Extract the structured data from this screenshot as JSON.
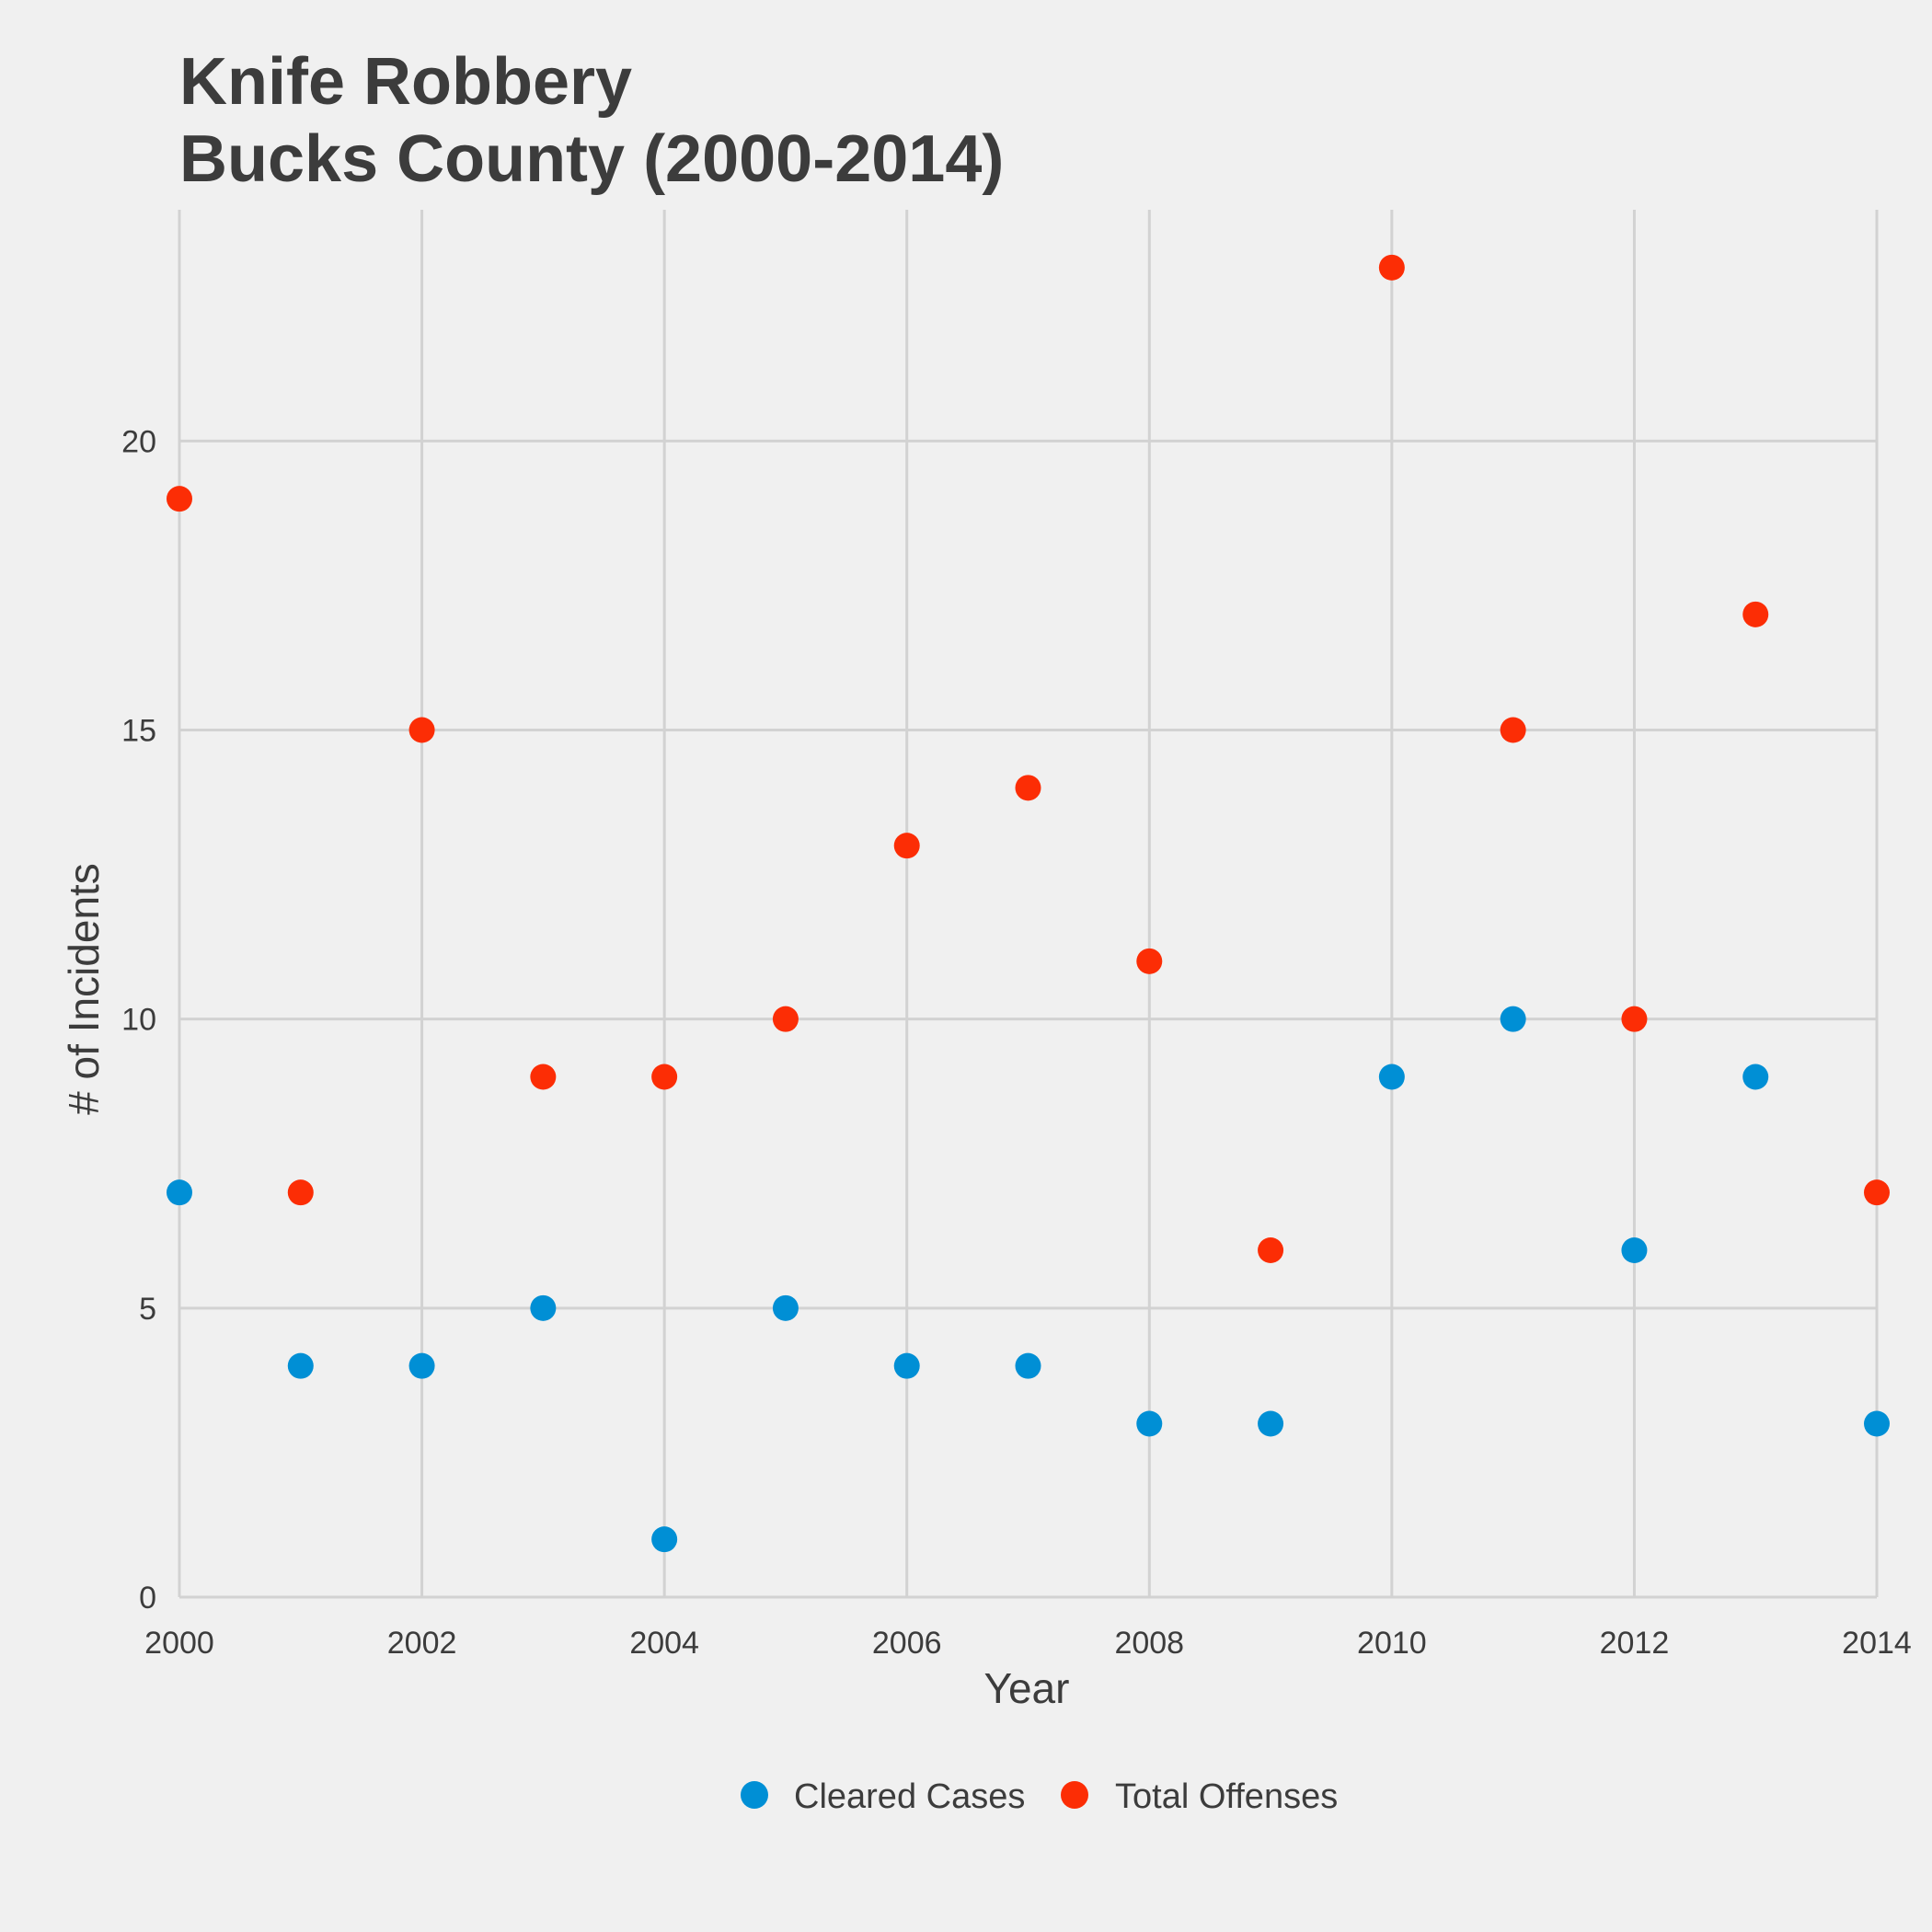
{
  "colors": {
    "background": "#f0f0f0",
    "grid": "#d2d2d2",
    "text": "#3c3c3c",
    "cleared": "#008fd5",
    "total": "#fc2d05"
  },
  "chart_data": {
    "type": "scatter",
    "title": "Knife Robbery",
    "subtitle": "Bucks County (2000-2014)",
    "xlabel": "Year",
    "ylabel": "# of Incidents",
    "xlim": [
      2000,
      2014
    ],
    "ylim": [
      0,
      24
    ],
    "x_ticks": [
      "2000",
      "2002",
      "2004",
      "2006",
      "2008",
      "2010",
      "2012",
      "2014"
    ],
    "y_ticks": [
      "0",
      "5",
      "10",
      "15",
      "20"
    ],
    "grid": true,
    "legend_position": "bottom",
    "x": [
      2000,
      2001,
      2002,
      2003,
      2004,
      2005,
      2006,
      2007,
      2008,
      2009,
      2010,
      2011,
      2012,
      2013,
      2014
    ],
    "series": [
      {
        "name": "Cleared Cases",
        "color": "#008fd5",
        "values": [
          7,
          4,
          4,
          5,
          1,
          5,
          4,
          4,
          3,
          3,
          9,
          10,
          6,
          9,
          3
        ]
      },
      {
        "name": "Total Offenses",
        "color": "#fc2d05",
        "values": [
          19,
          7,
          15,
          9,
          9,
          10,
          13,
          14,
          11,
          6,
          23,
          15,
          10,
          17,
          7
        ]
      }
    ]
  }
}
